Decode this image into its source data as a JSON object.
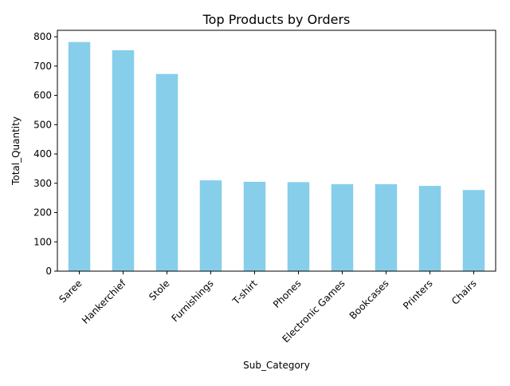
{
  "chart_data": {
    "type": "bar",
    "title": "Top Products by Orders",
    "xlabel": "Sub_Category",
    "ylabel": "Total_Quantity",
    "categories": [
      "Saree",
      "Hankerchief",
      "Stole",
      "Furnishings",
      "T-shirt",
      "Phones",
      "Electronic Games",
      "Bookcases",
      "Printers",
      "Chairs"
    ],
    "values": [
      782,
      754,
      673,
      310,
      305,
      304,
      297,
      297,
      291,
      277
    ],
    "ylim": [
      0,
      822
    ],
    "yticks": [
      0,
      100,
      200,
      300,
      400,
      500,
      600,
      700,
      800
    ],
    "bar_color": "#87ceeb",
    "grid": false,
    "legend": "none"
  }
}
